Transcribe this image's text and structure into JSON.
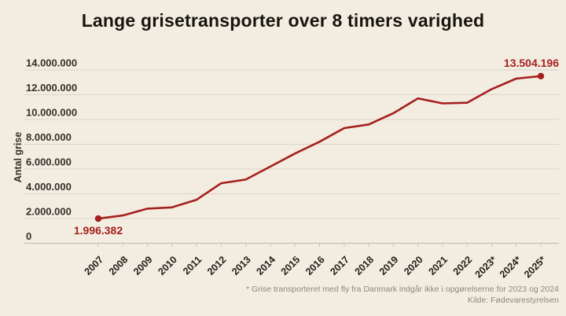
{
  "title": "Lange grisetransporter over 8 timers varighed",
  "footnote": "* Grise transporteret med fly fra Danmark indgår ikke i opgørelserne for 2023 og 2024",
  "source": "Kilde: Fødevarestyrelsen",
  "colors": {
    "background": "#f2ede0",
    "accent": "#a61f1f",
    "title_text": "#17150f",
    "axis_text": "#33302a",
    "xtick_text": "#211f1a",
    "muted_text": "#8e897b",
    "gridline": "#dbd5c7",
    "axis_line": "#c6c0b1"
  },
  "chart_data": {
    "type": "line",
    "title": "Lange grisetransporter over 8 timers varighed",
    "xlabel": "",
    "ylabel": "Antal grise",
    "categories": [
      "2007",
      "2008",
      "2009",
      "2010",
      "2011",
      "2012",
      "2013",
      "2014",
      "2015",
      "2016",
      "2017",
      "2018",
      "2019",
      "2020",
      "2021",
      "2022",
      "2023*",
      "2024*",
      "2025*"
    ],
    "values": [
      1996382,
      2250000,
      2800000,
      2900000,
      3520000,
      4850000,
      5150000,
      6200000,
      7250000,
      8200000,
      9300000,
      9600000,
      10500000,
      11700000,
      11300000,
      11350000,
      12450000,
      13300000,
      13504196
    ],
    "ylim": [
      0,
      14000000
    ],
    "ytick_step": 2000000,
    "ytick_labels": [
      "0",
      "2.000.000",
      "4.000.000",
      "6.000.000",
      "8.000.000",
      "10.000.000",
      "12.000.000",
      "14.000.000"
    ],
    "grid": "horizontal",
    "legend": "none",
    "marked_points": [
      "2007",
      "2025*"
    ],
    "point_labels": {
      "first": "1.996.382",
      "last": "13.504.196"
    }
  }
}
